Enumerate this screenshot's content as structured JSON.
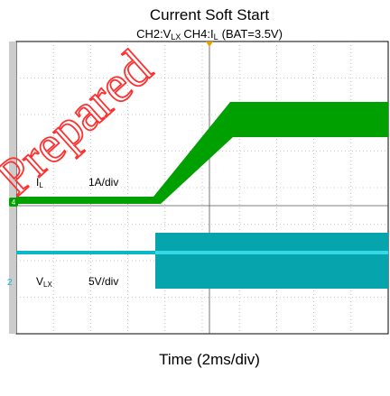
{
  "title": "Current Soft Start",
  "subtitle": {
    "ch2": "CH2:V",
    "ch2_sub": "LX",
    "ch4": "CH4:I",
    "ch4_sub": "L",
    "condition": "(BAT=3.5V)"
  },
  "traces": [
    {
      "marker": "4",
      "name": "I",
      "name_sub": "L",
      "scale": "1A/div"
    },
    {
      "marker": "2",
      "name": "V",
      "name_sub": "LX",
      "scale": "5V/div"
    }
  ],
  "x_label": "Time (2ms/div)",
  "watermark": "Prepared"
}
